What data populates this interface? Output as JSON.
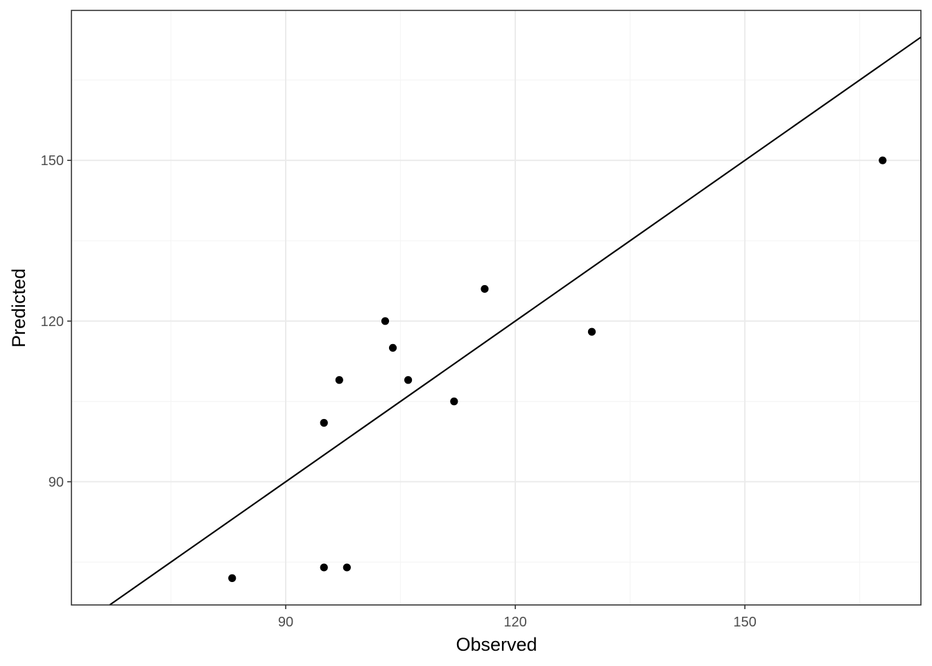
{
  "chart_data": {
    "type": "scatter",
    "title": "",
    "xlabel": "Observed",
    "ylabel": "Predicted",
    "xlim": [
      62,
      173
    ],
    "ylim": [
      67,
      178
    ],
    "x_ticks": [
      90,
      120,
      150
    ],
    "y_ticks": [
      90,
      120,
      150
    ],
    "x_minor_ticks": [
      75,
      105,
      135,
      165
    ],
    "y_minor_ticks": [
      75,
      105,
      135,
      165
    ],
    "grid": true,
    "reference_line": {
      "type": "identity",
      "slope": 1,
      "intercept": 0
    },
    "series": [
      {
        "points": [
          {
            "x": 83,
            "y": 72
          },
          {
            "x": 95,
            "y": 74
          },
          {
            "x": 98,
            "y": 74
          },
          {
            "x": 95,
            "y": 101
          },
          {
            "x": 97,
            "y": 109
          },
          {
            "x": 103,
            "y": 120
          },
          {
            "x": 104,
            "y": 115
          },
          {
            "x": 106,
            "y": 109
          },
          {
            "x": 112,
            "y": 105
          },
          {
            "x": 116,
            "y": 126
          },
          {
            "x": 130,
            "y": 118
          },
          {
            "x": 168,
            "y": 150
          }
        ]
      }
    ],
    "colors": {
      "points": "#000000",
      "reference_line": "#000000",
      "grid_major": "#ebebeb",
      "grid_minor": "#f5f5f5",
      "panel_border": "#333333",
      "tick_text": "#4d4d4d",
      "axis_title": "#000000"
    }
  }
}
